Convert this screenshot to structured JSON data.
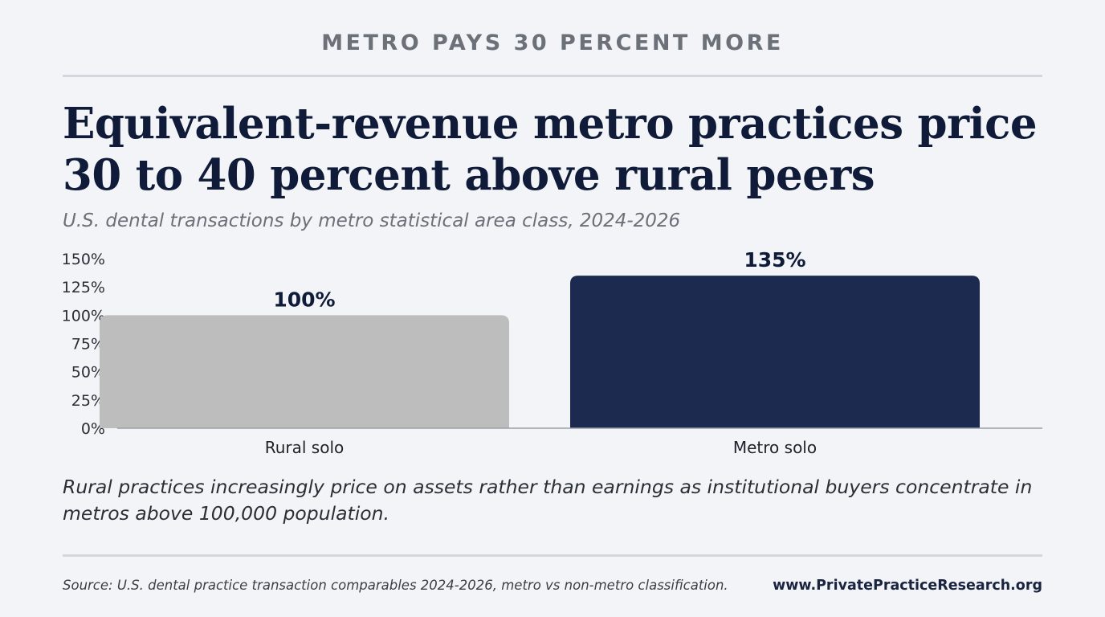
{
  "header": {
    "kicker": "METRO PAYS 30 PERCENT MORE",
    "title": "Equivalent-revenue metro practices price 30 to 40 percent above rural peers",
    "subtitle": "U.S. dental transactions by metro statistical area class, 2024-2026"
  },
  "chart_data": {
    "type": "bar",
    "categories": [
      "Rural solo",
      "Metro solo"
    ],
    "values": [
      100,
      135
    ],
    "value_labels": [
      "100%",
      "135%"
    ],
    "ylim": [
      0,
      150
    ],
    "yticks": [
      0,
      25,
      50,
      75,
      100,
      125,
      150
    ],
    "ytick_labels": [
      "0%",
      "25%",
      "50%",
      "75%",
      "100%",
      "125%",
      "150%"
    ],
    "colors": [
      "#bdbdbd",
      "#1b2a4e"
    ],
    "grid": false,
    "legend": "none"
  },
  "footer": {
    "note": "Rural practices increasingly price on assets rather than earnings as institutional buyers concentrate in metros above 100,000 population.",
    "source": "Source: U.S. dental practice transaction comparables 2024-2026, metro vs non-metro classification.",
    "website": "www.PrivatePracticeResearch.org"
  }
}
